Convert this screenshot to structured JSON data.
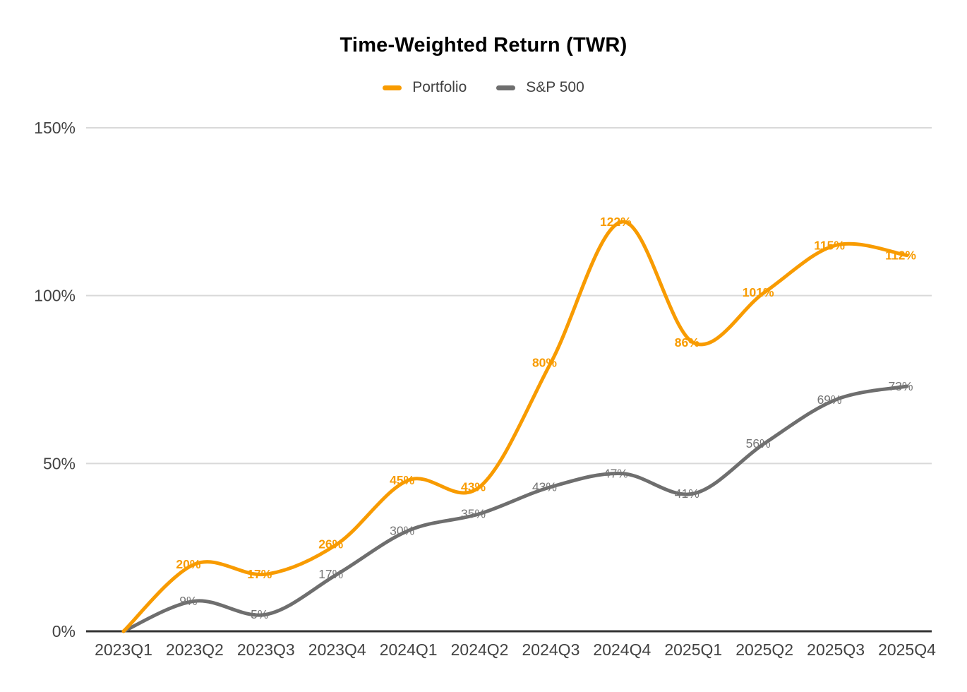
{
  "chart_data": {
    "type": "line",
    "title": "Time-Weighted Return (TWR)",
    "categories": [
      "2023Q1",
      "2023Q2",
      "2023Q3",
      "2023Q4",
      "2024Q1",
      "2024Q2",
      "2024Q3",
      "2024Q4",
      "2025Q1",
      "2025Q2",
      "2025Q3",
      "2025Q4"
    ],
    "series": [
      {
        "name": "Portfolio",
        "color": "#F89B00",
        "values": [
          0,
          20,
          17,
          26,
          45,
          43,
          80,
          122,
          86,
          101,
          115,
          112
        ],
        "labels": [
          "",
          "20%",
          "17%",
          "26%",
          "45%",
          "43%",
          "80%",
          "122%",
          "86%",
          "101%",
          "115%",
          "112%"
        ],
        "label_bold": true
      },
      {
        "name": "S&P 500",
        "color": "#6E6E6E",
        "values": [
          0,
          9,
          5,
          17,
          30,
          35,
          43,
          47,
          41,
          56,
          69,
          73
        ],
        "labels": [
          "",
          "9%",
          "5%",
          "17%",
          "30%",
          "35%",
          "43%",
          "47%",
          "41%",
          "56%",
          "69%",
          "73%"
        ],
        "label_bold": false,
        "label_color": "#757575"
      }
    ],
    "xlabel": "",
    "ylabel": "",
    "ylim": [
      0,
      150
    ],
    "yticks": [
      0,
      50,
      100,
      150
    ],
    "ytick_labels": [
      "0%",
      "50%",
      "100%",
      "150%"
    ],
    "grid": true,
    "smooth": true,
    "legend_position": "top",
    "colors": {
      "gridline": "#D9D9D9",
      "axis_line": "#333333",
      "axis_text": "#424242",
      "title_text": "#000000"
    }
  }
}
